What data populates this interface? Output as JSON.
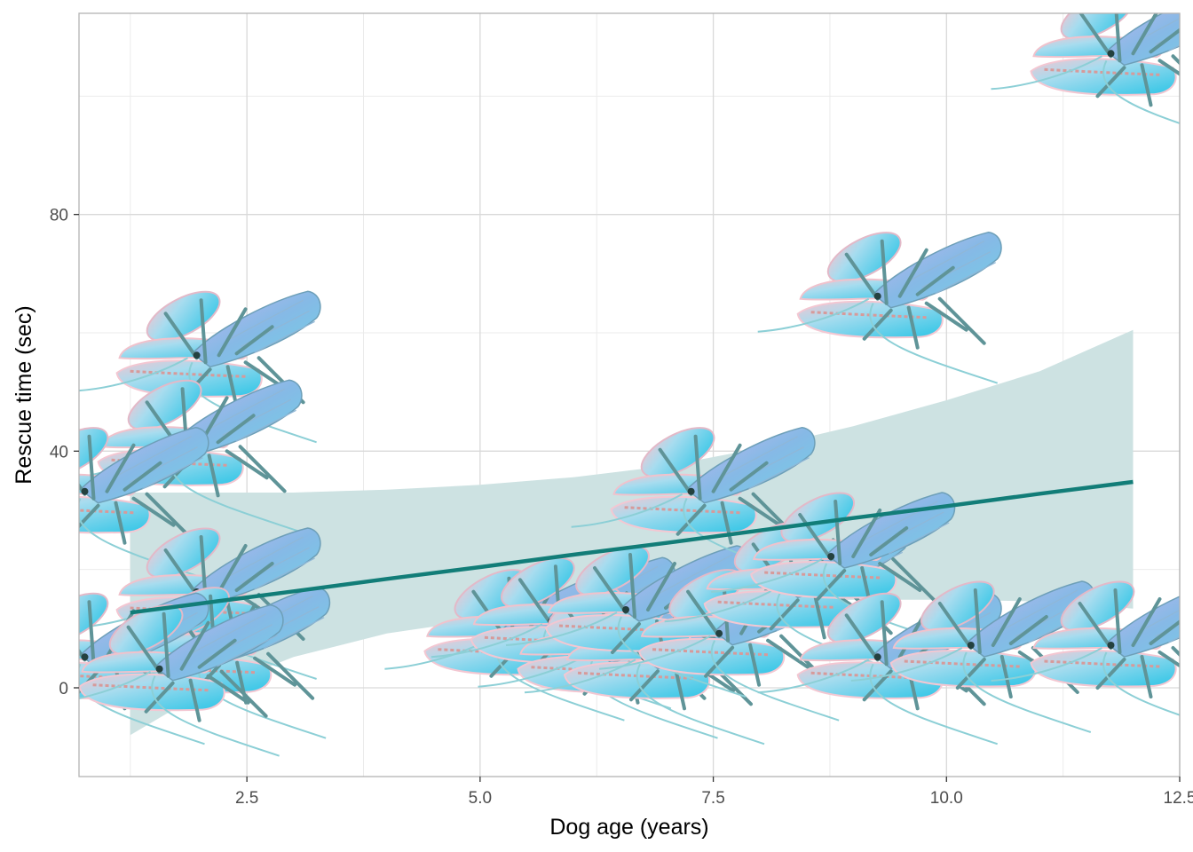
{
  "chart_data": {
    "type": "scatter",
    "xlabel": "Dog age (years)",
    "ylabel": "Rescue time (sec)",
    "xlim": [
      0.7,
      12.5
    ],
    "ylim": [
      -15,
      114
    ],
    "x_ticks": [
      2.5,
      5.0,
      7.5,
      10.0,
      12.5
    ],
    "x_tick_labels": [
      "2.5",
      "5.0",
      "7.5",
      "10.0",
      "12.5"
    ],
    "y_ticks": [
      0,
      40,
      80
    ],
    "y_tick_labels": [
      "0",
      "40",
      "80"
    ],
    "grid": true,
    "legend": "none",
    "marker": "blue-lobster-image",
    "points": [
      {
        "x": 2.2,
        "y": 55
      },
      {
        "x": 2.0,
        "y": 40
      },
      {
        "x": 1.0,
        "y": 32
      },
      {
        "x": 2.2,
        "y": 15
      },
      {
        "x": 2.3,
        "y": 5
      },
      {
        "x": 1.0,
        "y": 4
      },
      {
        "x": 1.8,
        "y": 2
      },
      {
        "x": 5.5,
        "y": 8
      },
      {
        "x": 6.0,
        "y": 10
      },
      {
        "x": 6.5,
        "y": 5
      },
      {
        "x": 7.0,
        "y": 4
      },
      {
        "x": 6.8,
        "y": 12
      },
      {
        "x": 7.5,
        "y": 32
      },
      {
        "x": 7.8,
        "y": 8
      },
      {
        "x": 8.5,
        "y": 16
      },
      {
        "x": 9.0,
        "y": 21
      },
      {
        "x": 9.5,
        "y": 4
      },
      {
        "x": 10.5,
        "y": 6
      },
      {
        "x": 12.0,
        "y": 6
      },
      {
        "x": 9.5,
        "y": 65
      },
      {
        "x": 12.0,
        "y": 106
      }
    ],
    "fit": {
      "type": "linear",
      "color": "#127d78",
      "band_color": "#cde2e2",
      "x": [
        1.25,
        2.0,
        3.0,
        4.0,
        5.0,
        6.0,
        7.0,
        8.0,
        9.0,
        10.0,
        11.0,
        12.0
      ],
      "y": [
        12.7,
        14.25,
        16.3,
        18.4,
        20.4,
        22.5,
        24.5,
        26.6,
        28.7,
        30.7,
        32.8,
        34.8
      ],
      "lower": [
        -8,
        -1,
        5.2,
        9.2,
        11.5,
        12.9,
        14,
        14.6,
        14.9,
        14.9,
        14.6,
        13.4
      ],
      "upper": [
        33,
        33,
        33,
        33.5,
        34.3,
        35.6,
        37.5,
        40.5,
        44.2,
        48.6,
        53.5,
        60.5
      ]
    }
  }
}
